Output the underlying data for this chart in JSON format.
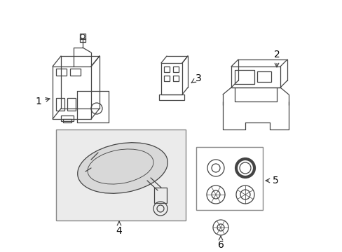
{
  "bg_color": "#ffffff",
  "line_color": "#444444",
  "label_color": "#000000",
  "fig_width": 4.89,
  "fig_height": 3.6,
  "dpi": 100
}
